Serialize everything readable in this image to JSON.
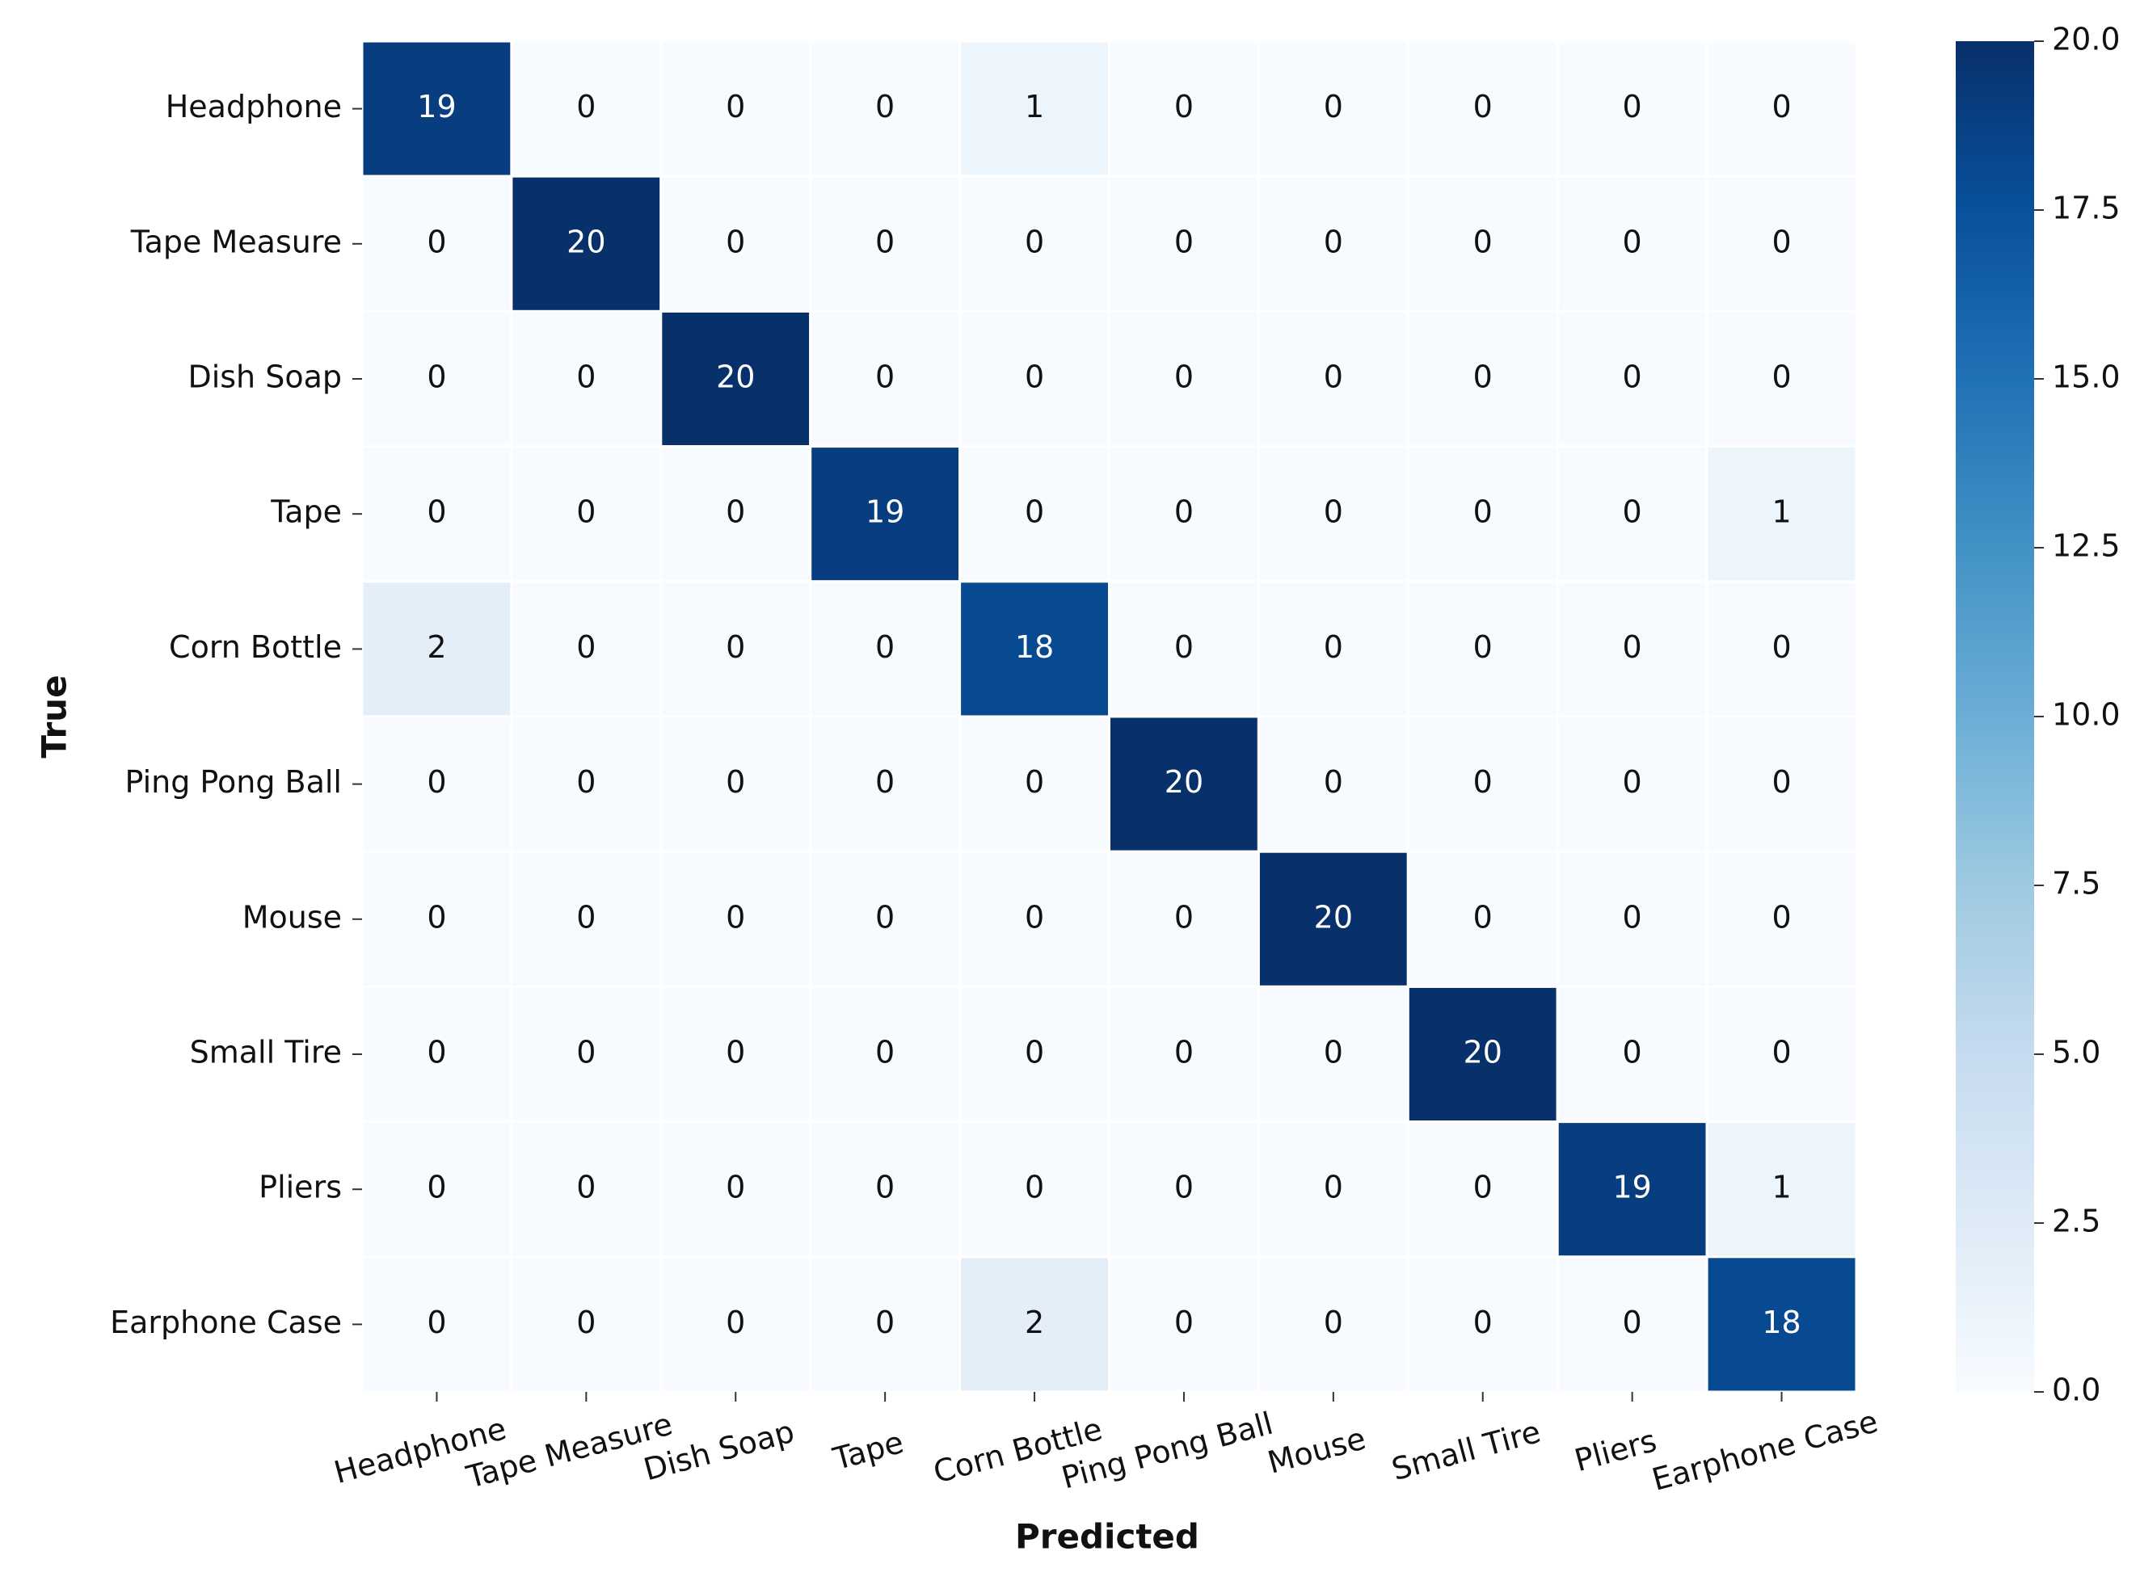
{
  "chart_data": {
    "type": "heatmap",
    "x_label": "Predicted",
    "y_label": "True",
    "x_categories": [
      "Headphone",
      "Tape Measure",
      "Dish Soap",
      "Tape",
      "Corn Bottle",
      "Ping Pong Ball",
      "Mouse",
      "Small Tire",
      "Pliers",
      "Earphone Case"
    ],
    "y_categories": [
      "Headphone",
      "Tape Measure",
      "Dish Soap",
      "Tape",
      "Corn Bottle",
      "Ping Pong Ball",
      "Mouse",
      "Small Tire",
      "Pliers",
      "Earphone Case"
    ],
    "values": [
      [
        19,
        0,
        0,
        0,
        1,
        0,
        0,
        0,
        0,
        0
      ],
      [
        0,
        20,
        0,
        0,
        0,
        0,
        0,
        0,
        0,
        0
      ],
      [
        0,
        0,
        20,
        0,
        0,
        0,
        0,
        0,
        0,
        0
      ],
      [
        0,
        0,
        0,
        19,
        0,
        0,
        0,
        0,
        0,
        1
      ],
      [
        2,
        0,
        0,
        0,
        18,
        0,
        0,
        0,
        0,
        0
      ],
      [
        0,
        0,
        0,
        0,
        0,
        20,
        0,
        0,
        0,
        0
      ],
      [
        0,
        0,
        0,
        0,
        0,
        0,
        20,
        0,
        0,
        0
      ],
      [
        0,
        0,
        0,
        0,
        0,
        0,
        0,
        20,
        0,
        0
      ],
      [
        0,
        0,
        0,
        0,
        0,
        0,
        0,
        0,
        19,
        1
      ],
      [
        0,
        0,
        0,
        0,
        2,
        0,
        0,
        0,
        0,
        18
      ]
    ],
    "colormap": "Blues",
    "clim": [
      0,
      20
    ],
    "cticks": [
      {
        "value": 0,
        "label": "0.0"
      },
      {
        "value": 2.5,
        "label": "2.5"
      },
      {
        "value": 5,
        "label": "5.0"
      },
      {
        "value": 7.5,
        "label": "7.5"
      },
      {
        "value": 10,
        "label": "10.0"
      },
      {
        "value": 12.5,
        "label": "12.5"
      },
      {
        "value": 15,
        "label": "15.0"
      },
      {
        "value": 17.5,
        "label": "17.5"
      },
      {
        "value": 20,
        "label": "20.0"
      }
    ]
  }
}
